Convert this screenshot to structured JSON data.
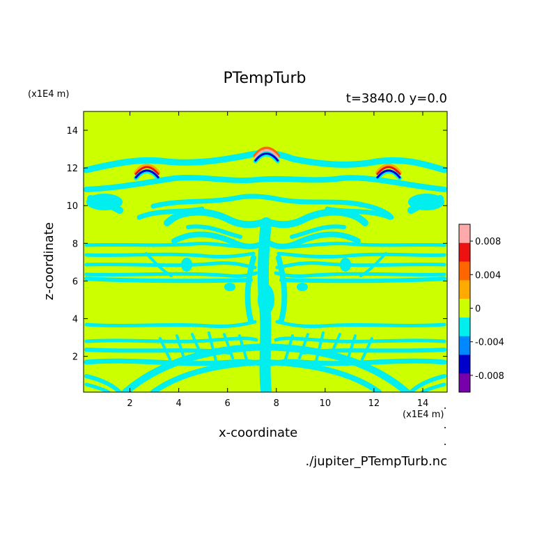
{
  "chart_data": {
    "type": "heatmap",
    "title": "PTempTurb",
    "subtitle": "t=3840.0 y=0.0",
    "xlabel": "x-coordinate",
    "ylabel": "z-coordinate",
    "x_unit": "(x1E4 m)",
    "y_unit": "(x1E4 m)",
    "footer": "./jupiter_PTempTurb.nc",
    "xlim": [
      0.1,
      15.0
    ],
    "ylim": [
      0.1,
      15.0
    ],
    "x_ticks": [
      2,
      4,
      6,
      8,
      10,
      12,
      14
    ],
    "y_ticks": [
      2,
      4,
      6,
      8,
      10,
      12,
      14
    ],
    "colorbar": {
      "range": [
        -0.01,
        0.01
      ],
      "tick_values": [
        0.008,
        0.004,
        0,
        -0.004,
        -0.008
      ],
      "tick_labels": [
        "0.008",
        "0.004",
        "0",
        "-0.004",
        "-0.008"
      ],
      "colors": [
        "#ffaaaa",
        "#ee1111",
        "#ff6600",
        "#ffaa00",
        "#ccff00",
        "#00eeee",
        "#0088ff",
        "#0000cc",
        "#7700aa"
      ]
    },
    "background_value": 0,
    "background_color": "#ccff00",
    "negative_pattern_color": "#00eeee",
    "features": [
      {
        "shape": "arc",
        "x": 2.7,
        "z": 11.9,
        "value_max": 0.006,
        "value_min": -0.006
      },
      {
        "shape": "arc",
        "x": 7.6,
        "z": 12.8,
        "value_max": 0.008,
        "value_min": -0.006
      },
      {
        "shape": "arc",
        "x": 12.6,
        "z": 11.9,
        "value_max": 0.006,
        "value_min": -0.006
      }
    ]
  }
}
